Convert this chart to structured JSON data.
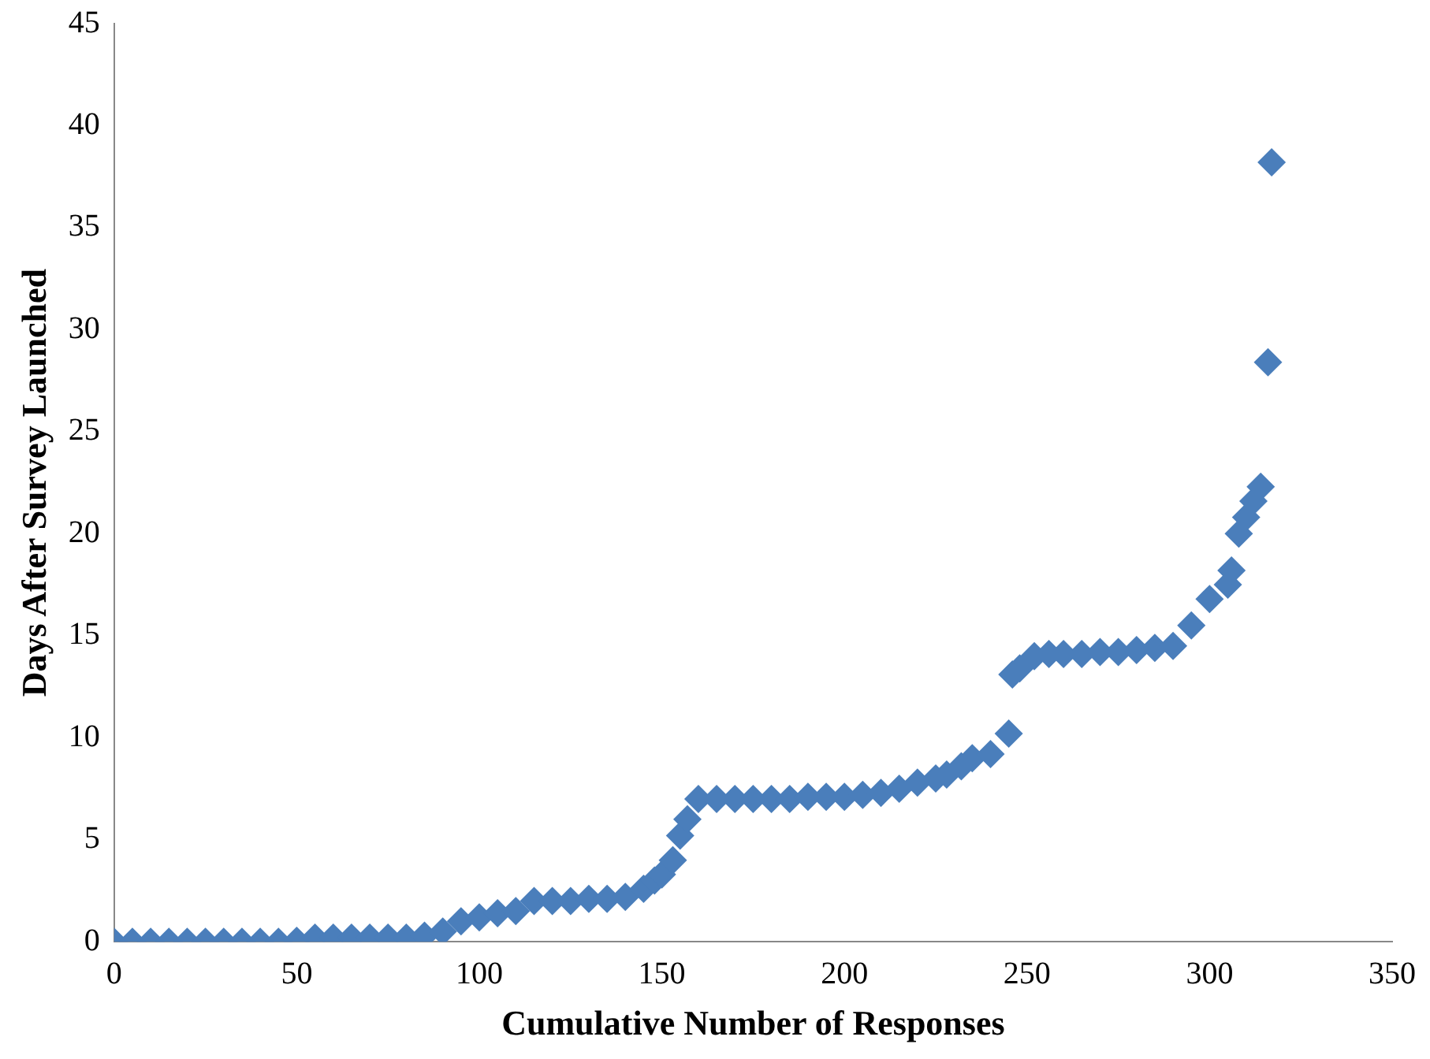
{
  "chart_data": {
    "type": "scatter",
    "xlabel": "Cumulative Number of Responses",
    "ylabel": "Days After Survey Launched",
    "marker": "diamond",
    "grid": false,
    "legend": false,
    "xlim": [
      0,
      350
    ],
    "xticks": [
      0,
      50,
      100,
      150,
      200,
      250,
      300,
      350
    ],
    "ylim": [
      0,
      45
    ],
    "yticks": [
      0,
      5,
      10,
      15,
      20,
      25,
      30,
      35,
      40,
      45
    ],
    "series": [
      {
        "color": "#4a7ebb",
        "x": [
          0,
          5,
          10,
          15,
          20,
          25,
          30,
          35,
          40,
          45,
          50,
          55,
          60,
          65,
          70,
          75,
          80,
          85,
          90,
          95,
          100,
          105,
          110,
          115,
          120,
          125,
          130,
          135,
          140,
          145,
          148,
          150,
          153,
          155,
          157,
          160,
          165,
          170,
          175,
          180,
          185,
          190,
          195,
          200,
          205,
          210,
          215,
          220,
          225,
          228,
          232,
          235,
          240,
          245,
          246,
          248,
          252,
          256,
          260,
          265,
          270,
          275,
          280,
          285,
          290,
          295,
          300,
          305,
          306,
          308,
          310,
          312,
          314,
          316,
          317
        ],
        "values": [
          0,
          0,
          0,
          0,
          0,
          0,
          0,
          0,
          0,
          0,
          0.05,
          0.2,
          0.2,
          0.2,
          0.2,
          0.2,
          0.2,
          0.3,
          0.5,
          1.0,
          1.2,
          1.4,
          1.5,
          2.0,
          2.0,
          2.0,
          2.1,
          2.1,
          2.2,
          2.6,
          3.0,
          3.3,
          4,
          5.2,
          6,
          7,
          7,
          7,
          7,
          7,
          7,
          7.1,
          7.1,
          7.1,
          7.2,
          7.3,
          7.5,
          7.8,
          8.0,
          8.2,
          8.6,
          9,
          9.2,
          10.2,
          13.1,
          13.4,
          14,
          14.1,
          14.1,
          14.1,
          14.2,
          14.2,
          14.3,
          14.4,
          14.5,
          15.5,
          16.8,
          17.5,
          18.2,
          20,
          20.8,
          21.6,
          22.3,
          28.4,
          38.2
        ]
      }
    ]
  }
}
